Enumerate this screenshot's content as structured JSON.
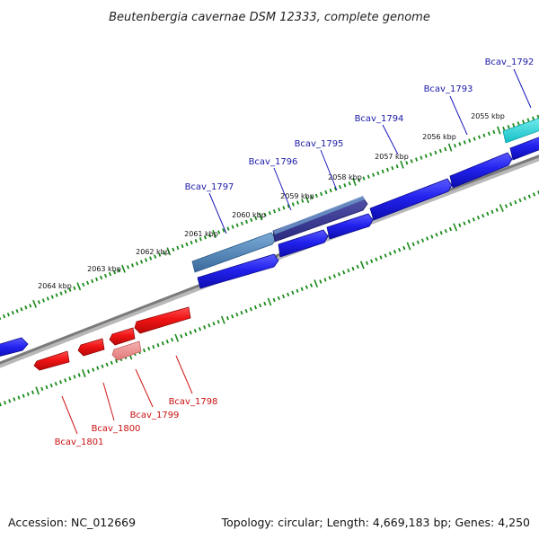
{
  "title": "Beutenbergia cavernae DSM 12333, complete genome",
  "footer": {
    "accession": "Accession: NC_012669",
    "summary": "Topology: circular; Length: 4,669,183 bp; Genes: 4,250"
  },
  "colors": {
    "forward_gene": "#1a1ad8",
    "forward_label": "#1a1aa8",
    "reverse_gene": "#e81010",
    "reverse_label": "#c81010",
    "highlight": "#4a86b8",
    "cyan_gene": "#19d9de",
    "backbone": "#808080",
    "ticks": "#1a8a1a"
  },
  "scale_labels": [
    "2055 kbp",
    "2056 kbp",
    "2057 kbp",
    "2058 kbp",
    "2059 kbp",
    "2060 kbp",
    "2061 kbp",
    "2062 kbp",
    "2063 kbp",
    "2064 kbp"
  ],
  "forward_genes": [
    {
      "label": "Bcav_1792",
      "style": "cyan"
    },
    {
      "label": "Bcav_1793",
      "style": "normal"
    },
    {
      "label": "Bcav_1794",
      "style": "normal"
    },
    {
      "label": "Bcav_1795",
      "style": "dark"
    },
    {
      "label": "Bcav_1796",
      "style": "normal"
    },
    {
      "label": "Bcav_1797",
      "style": "highlight"
    }
  ],
  "reverse_genes": [
    {
      "label": "Bcav_1798",
      "style": "normal"
    },
    {
      "label": "Bcav_1799",
      "style": "pale"
    },
    {
      "label": "Bcav_1800",
      "style": "normal"
    },
    {
      "label": "Bcav_1801",
      "style": "normal"
    }
  ]
}
